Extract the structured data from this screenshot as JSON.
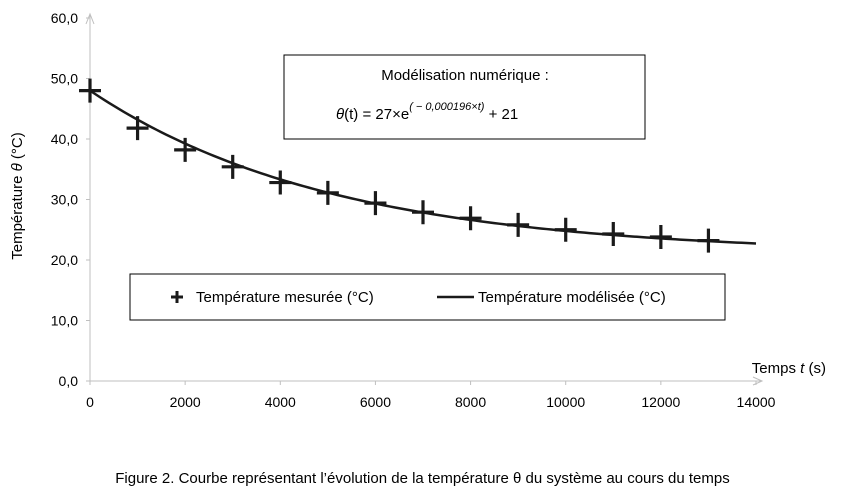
{
  "chart_data": {
    "type": "scatter",
    "xlabel_prefix": "Temps ",
    "xlabel_var": "t",
    "xlabel_suffix": " (s)",
    "ylabel_prefix": "Température ",
    "ylabel_var": "θ",
    "ylabel_suffix": " (°C)",
    "xlim": [
      0,
      14000
    ],
    "ylim": [
      0,
      60
    ],
    "x_ticks": [
      "0",
      "2000",
      "4000",
      "6000",
      "8000",
      "10000",
      "12000",
      "14000"
    ],
    "y_ticks": [
      "0,0",
      "10,0",
      "20,0",
      "30,0",
      "40,0",
      "50,0",
      "60,0"
    ],
    "grid": false,
    "legend_placement": "inside-bottom-center",
    "series": [
      {
        "name": "Température mesurée (°C)",
        "kind": "markers",
        "marker": "plus",
        "x": [
          0,
          1000,
          2000,
          3000,
          4000,
          5000,
          6000,
          7000,
          8000,
          9000,
          10000,
          11000,
          12000,
          13000
        ],
        "y": [
          48.0,
          41.8,
          38.2,
          35.4,
          32.8,
          31.1,
          29.4,
          27.9,
          26.9,
          25.8,
          25.0,
          24.3,
          23.8,
          23.2
        ]
      },
      {
        "name": "Température modélisée (°C)",
        "kind": "line",
        "model": {
          "a": 27,
          "k": 0.000196,
          "b": 21
        },
        "x_range": [
          0,
          14000
        ]
      }
    ],
    "annotation": {
      "title": "Modélisation numérique :",
      "formula_lhs": "θ",
      "formula_mid": "(t) = 27×e",
      "formula_exp": "( − 0,000196×t)",
      "formula_tail": " + 21"
    },
    "colors": {
      "marks": "#1a1a1a",
      "axis": "#bfbfbf"
    }
  },
  "caption": "Figure 2. Courbe représentant l’évolution de la température θ du système au cours du temps"
}
